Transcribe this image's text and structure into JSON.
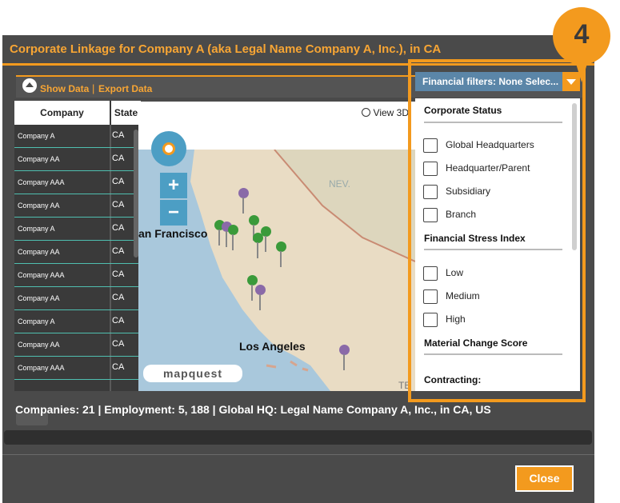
{
  "dialog": {
    "title": "Corporate Linkage for Company A (aka Legal Name Company A, Inc.), in CA",
    "close_label": "Close"
  },
  "toolbar": {
    "show_data": "Show Data",
    "separator": "|",
    "export_data": "Export Data"
  },
  "table": {
    "headers": {
      "company": "Company",
      "state": "State"
    },
    "rows": [
      {
        "company": "Company A",
        "state": "CA"
      },
      {
        "company": "Company AA",
        "state": "CA"
      },
      {
        "company": "Company AAA",
        "state": "CA"
      },
      {
        "company": "Company AA",
        "state": "CA"
      },
      {
        "company": "Company A",
        "state": "CA"
      },
      {
        "company": "Company AA",
        "state": "CA"
      },
      {
        "company": "Company AAA",
        "state": "CA"
      },
      {
        "company": "Company AA",
        "state": "CA"
      },
      {
        "company": "Company A",
        "state": "CA"
      },
      {
        "company": "Company AA",
        "state": "CA"
      },
      {
        "company": "Company AAA",
        "state": "CA"
      }
    ]
  },
  "map": {
    "view3d_label": "View 3D",
    "labels": {
      "san_francisco": "an Francisco",
      "los_angeles": "Los Angeles",
      "nevada": "NEV.",
      "attribution": "TE"
    },
    "logo": "mapquest",
    "zoom_in": "+",
    "zoom_out": "−"
  },
  "filters": {
    "button_label": "Financial filters: None Selec...",
    "sections": [
      {
        "title": "Corporate Status",
        "items": [
          "Global Headquarters",
          "Headquarter/Parent",
          "Subsidiary",
          "Branch"
        ]
      },
      {
        "title": "Financial Stress Index",
        "items": [
          "Low",
          "Medium",
          "High"
        ]
      },
      {
        "title": "Material Change Score",
        "items": []
      },
      {
        "title": "Contracting:",
        "items": []
      }
    ]
  },
  "callout": {
    "number": "4"
  },
  "status": {
    "text": "Companies: 21 | Employment: 5, 188 | Global HQ: Legal Name Company A, Inc., in CA, US"
  }
}
